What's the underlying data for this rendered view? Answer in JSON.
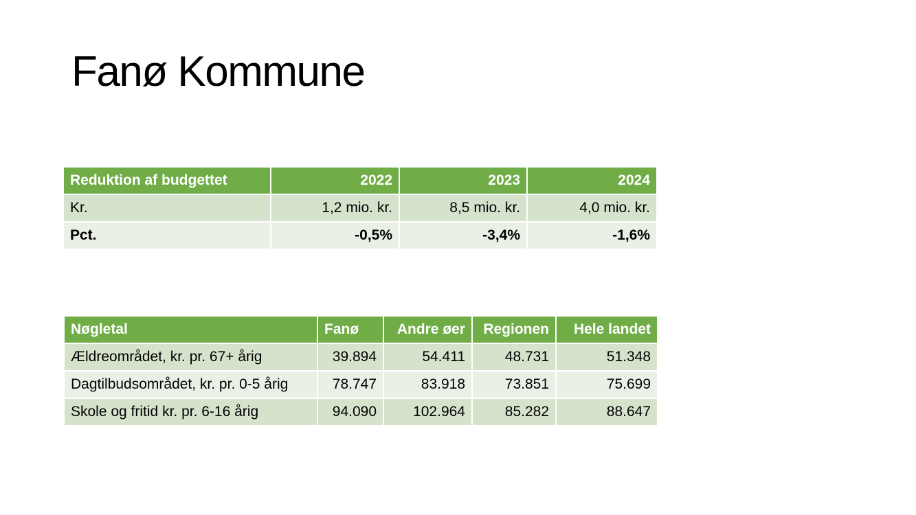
{
  "title": "Fanø Kommune",
  "budget_table": {
    "headers": [
      "Reduktion af budgettet",
      "2022",
      "2023",
      "2024"
    ],
    "rows": [
      [
        "Kr.",
        "1,2 mio. kr.",
        "8,5 mio. kr.",
        "4,0 mio. kr."
      ],
      [
        "Pct.",
        "-0,5%",
        "-3,4%",
        "-1,6%"
      ]
    ]
  },
  "keyfig_table": {
    "headers": [
      "Nøgletal",
      "Fanø",
      "Andre øer",
      "Regionen",
      "Hele landet"
    ],
    "rows": [
      [
        "Ældreområdet, kr. pr. 67+ årig",
        "39.894",
        "54.411",
        "48.731",
        "51.348"
      ],
      [
        "Dagtilbudsområdet, kr. pr. 0-5 årig",
        "78.747",
        "83.918",
        "73.851",
        "75.699"
      ],
      [
        "Skole og fritid kr. pr. 6-16 årig",
        "94.090",
        "102.964",
        "85.282",
        "88.647"
      ]
    ]
  },
  "colors": {
    "header_green": "#70ad47",
    "band_dark": "#d5e2cc",
    "band_light": "#ebf0e7"
  }
}
